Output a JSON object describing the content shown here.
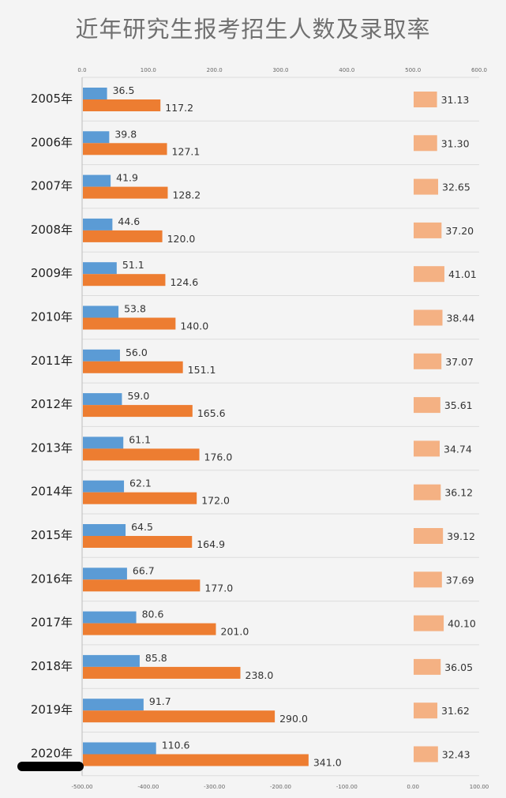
{
  "chart_data": {
    "type": "bar",
    "title": "近年研究生报考招生人数及录取率",
    "categories": [
      "2005年",
      "2006年",
      "2007年",
      "2008年",
      "2009年",
      "2010年",
      "2011年",
      "2012年",
      "2013年",
      "2014年",
      "2015年",
      "2016年",
      "2017年",
      "2018年",
      "2019年",
      "2020年"
    ],
    "series": [
      {
        "values": [
          36.5,
          39.8,
          41.9,
          44.6,
          51.1,
          53.8,
          56.0,
          59.0,
          61.1,
          62.1,
          64.5,
          66.7,
          80.6,
          85.8,
          91.7,
          110.6
        ],
        "labels": [
          "36.5",
          "39.8",
          "41.9",
          "44.6",
          "51.1",
          "53.8",
          "56.0",
          "59.0",
          "61.1",
          "62.1",
          "64.5",
          "66.7",
          "80.6",
          "85.8",
          "91.7",
          "110.6"
        ],
        "color": "#5b9bd5"
      },
      {
        "values": [
          117.2,
          127.1,
          128.2,
          120.0,
          124.6,
          140.0,
          151.1,
          165.6,
          176.0,
          172.0,
          164.9,
          177.0,
          201.0,
          238.0,
          290.0,
          341.0
        ],
        "labels": [
          "117.2",
          "127.1",
          "128.2",
          "120.0",
          "124.6",
          "140.0",
          "151.1",
          "165.6",
          "176.0",
          "172.0",
          "164.9",
          "177.0",
          "201.0",
          "238.0",
          "290.0",
          "341.0"
        ],
        "color": "#ed7d31"
      }
    ],
    "rate_series": {
      "values": [
        31.13,
        31.3,
        32.65,
        37.2,
        41.01,
        38.44,
        37.07,
        35.61,
        34.74,
        36.12,
        39.12,
        37.69,
        40.1,
        36.05,
        31.62,
        32.43
      ],
      "labels": [
        "31.13",
        "31.30",
        "32.65",
        "37.20",
        "41.01",
        "38.44",
        "37.07",
        "35.61",
        "34.74",
        "36.12",
        "39.12",
        "37.69",
        "40.10",
        "36.05",
        "31.62",
        "32.43"
      ],
      "color": "#f4b183"
    },
    "top_axis": {
      "range": [
        0,
        600
      ],
      "ticks": [
        "0.0",
        "100.0",
        "200.0",
        "300.0",
        "400.0",
        "500.0",
        "600.0"
      ]
    },
    "bottom_axis": {
      "range": [
        -500,
        100
      ],
      "ticks": [
        "-500.00",
        "-400.00",
        "-300.00",
        "-200.00",
        "-100.00",
        "0.00",
        "100.00"
      ]
    },
    "grid": "horizontal",
    "legend": "none"
  }
}
